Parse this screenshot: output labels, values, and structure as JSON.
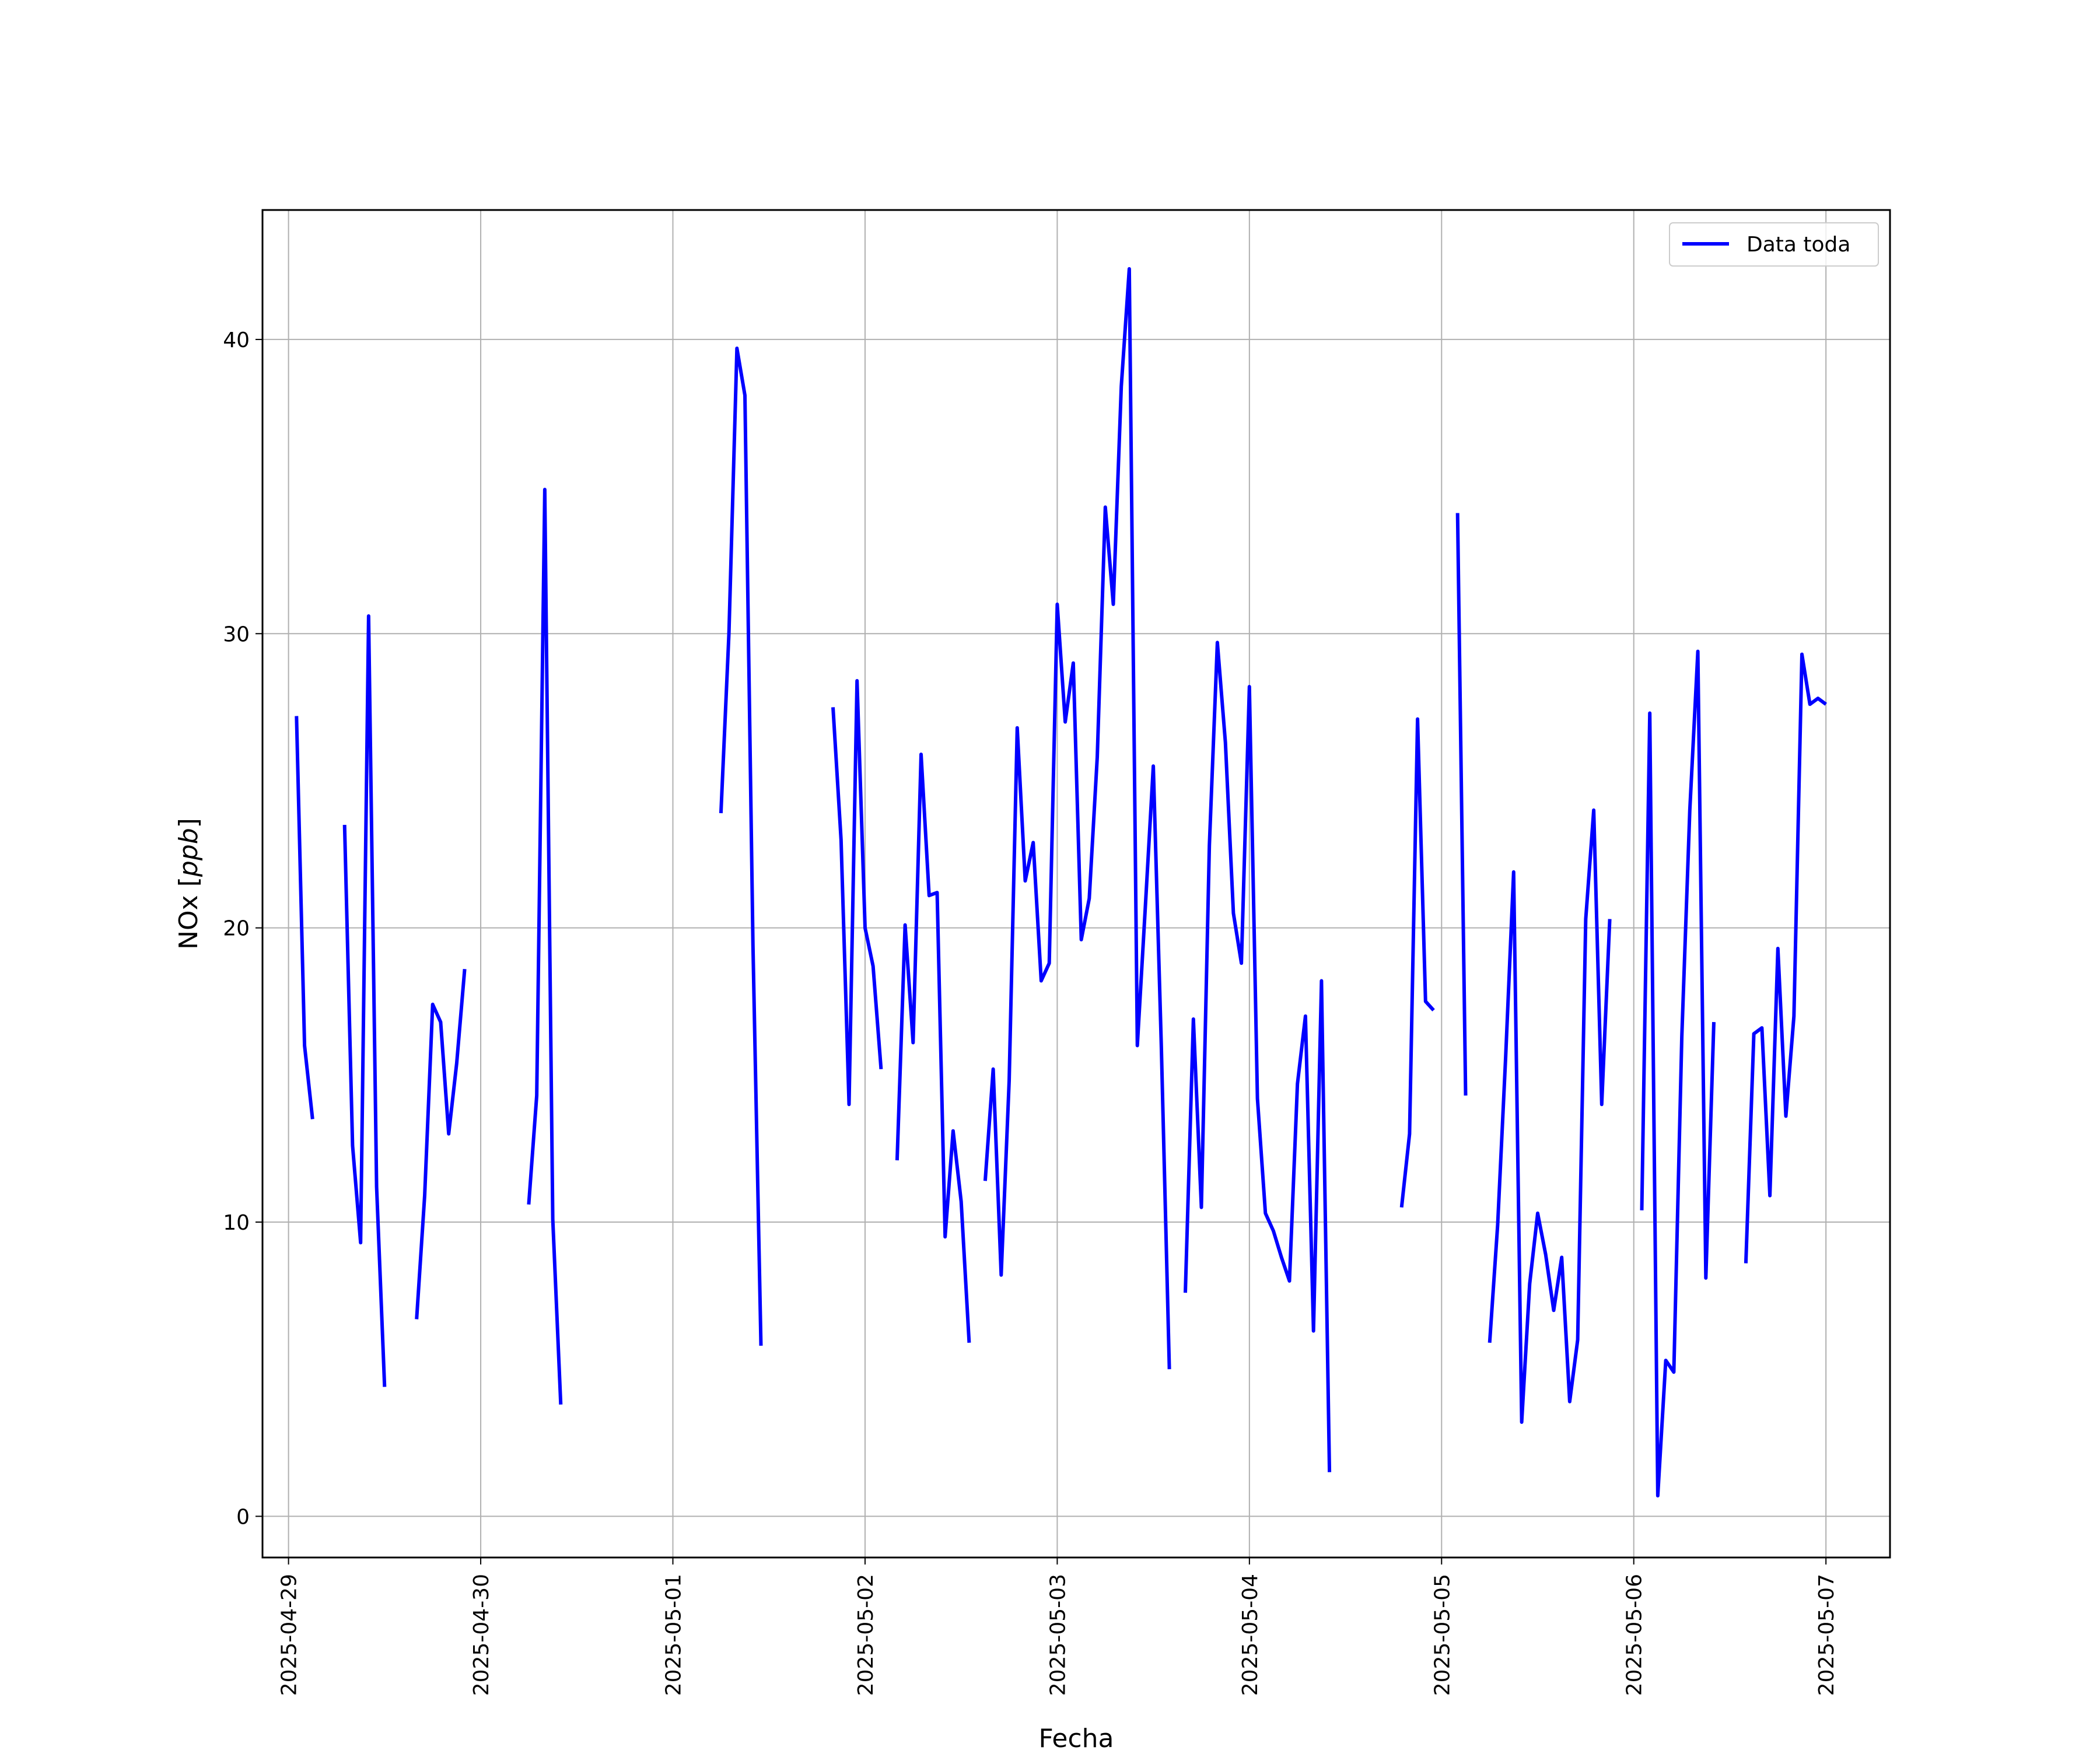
{
  "chart_data": {
    "type": "line",
    "title": "",
    "xlabel": "Fecha",
    "ylabel": "NOx [ppb]",
    "ylabel_main": "NOx ",
    "ylabel_unit": "ppb",
    "x_start": "2025-04-28T20:45",
    "x_end": "2025-05-07T08:00",
    "ylim": [
      -1.4,
      44.4
    ],
    "yticks": [
      0,
      10,
      20,
      30,
      40
    ],
    "xticks": [
      "2025-04-29",
      "2025-04-30",
      "2025-05-01",
      "2025-05-02",
      "2025-05-03",
      "2025-05-04",
      "2025-05-05",
      "2025-05-06",
      "2025-05-07"
    ],
    "grid": true,
    "legend_position": "upper right",
    "series": [
      {
        "name": "Data toda",
        "color": "#0000ff",
        "segments": [
          [
            [
              "2025-04-29T01:00",
              27.2
            ],
            [
              "2025-04-29T02:00",
              16.0
            ],
            [
              "2025-04-29T03:00",
              13.5
            ]
          ],
          [
            [
              "2025-04-29T07:00",
              23.5
            ],
            [
              "2025-04-29T08:00",
              12.6
            ],
            [
              "2025-04-29T09:00",
              9.3
            ],
            [
              "2025-04-29T10:00",
              30.6
            ],
            [
              "2025-04-29T11:00",
              11.2
            ],
            [
              "2025-04-29T12:00",
              4.4
            ]
          ],
          [
            [
              "2025-04-29T16:00",
              6.7
            ],
            [
              "2025-04-29T17:00",
              10.9
            ],
            [
              "2025-04-29T18:00",
              17.4
            ],
            [
              "2025-04-29T19:00",
              16.8
            ],
            [
              "2025-04-29T20:00",
              13.0
            ],
            [
              "2025-04-29T21:00",
              15.4
            ],
            [
              "2025-04-29T22:00",
              18.6
            ]
          ],
          [
            [
              "2025-04-30T06:00",
              10.6
            ],
            [
              "2025-04-30T07:00",
              14.3
            ],
            [
              "2025-04-30T08:00",
              34.9
            ],
            [
              "2025-04-30T09:00",
              10.1
            ],
            [
              "2025-04-30T10:00",
              3.8
            ]
          ],
          [
            [
              "2025-05-01T06:00",
              23.9
            ],
            [
              "2025-05-01T07:00",
              30.0
            ],
            [
              "2025-05-01T08:00",
              39.7
            ],
            [
              "2025-05-01T09:00",
              38.1
            ],
            [
              "2025-05-01T10:00",
              19.4
            ],
            [
              "2025-05-01T11:00",
              5.8
            ]
          ],
          [
            [
              "2025-05-01T20:00",
              27.5
            ],
            [
              "2025-05-01T21:00",
              23.0
            ],
            [
              "2025-05-01T22:00",
              14.0
            ],
            [
              "2025-05-01T23:00",
              28.4
            ],
            [
              "2025-05-02T00:00",
              20.0
            ],
            [
              "2025-05-02T01:00",
              18.7
            ],
            [
              "2025-05-02T02:00",
              15.2
            ]
          ],
          [
            [
              "2025-05-02T04:00",
              12.1
            ],
            [
              "2025-05-02T05:00",
              20.1
            ],
            [
              "2025-05-02T06:00",
              16.1
            ],
            [
              "2025-05-02T07:00",
              25.9
            ],
            [
              "2025-05-02T08:00",
              21.1
            ],
            [
              "2025-05-02T09:00",
              21.2
            ],
            [
              "2025-05-02T10:00",
              9.5
            ],
            [
              "2025-05-02T11:00",
              13.1
            ],
            [
              "2025-05-02T12:00",
              10.7
            ],
            [
              "2025-05-02T13:00",
              5.9
            ]
          ],
          [
            [
              "2025-05-02T15:00",
              11.4
            ],
            [
              "2025-05-02T16:00",
              15.2
            ],
            [
              "2025-05-02T17:00",
              8.2
            ],
            [
              "2025-05-02T18:00",
              14.8
            ],
            [
              "2025-05-02T19:00",
              26.8
            ],
            [
              "2025-05-02T20:00",
              21.6
            ],
            [
              "2025-05-02T21:00",
              22.9
            ],
            [
              "2025-05-02T22:00",
              18.2
            ],
            [
              "2025-05-02T23:00",
              18.8
            ],
            [
              "2025-05-03T00:00",
              31.0
            ],
            [
              "2025-05-03T01:00",
              27.0
            ],
            [
              "2025-05-03T02:00",
              29.0
            ],
            [
              "2025-05-03T03:00",
              19.6
            ],
            [
              "2025-05-03T04:00",
              21.0
            ],
            [
              "2025-05-03T05:00",
              25.8
            ],
            [
              "2025-05-03T06:00",
              34.3
            ],
            [
              "2025-05-03T07:00",
              31.0
            ],
            [
              "2025-05-03T08:00",
              38.4
            ],
            [
              "2025-05-03T09:00",
              42.4
            ],
            [
              "2025-05-03T10:00",
              16.0
            ],
            [
              "2025-05-03T11:00",
              20.7
            ],
            [
              "2025-05-03T12:00",
              25.5
            ],
            [
              "2025-05-03T13:00",
              16.0
            ],
            [
              "2025-05-03T14:00",
              5.0
            ]
          ],
          [
            [
              "2025-05-03T16:00",
              7.6
            ],
            [
              "2025-05-03T17:00",
              16.9
            ],
            [
              "2025-05-03T18:00",
              10.5
            ],
            [
              "2025-05-03T19:00",
              22.8
            ],
            [
              "2025-05-03T20:00",
              29.7
            ],
            [
              "2025-05-03T21:00",
              26.3
            ],
            [
              "2025-05-03T22:00",
              20.5
            ],
            [
              "2025-05-03T23:00",
              18.8
            ],
            [
              "2025-05-04T00:00",
              28.2
            ],
            [
              "2025-05-04T01:00",
              14.2
            ],
            [
              "2025-05-04T02:00",
              10.3
            ],
            [
              "2025-05-04T03:00",
              9.7
            ],
            [
              "2025-05-04T04:00",
              8.8
            ],
            [
              "2025-05-04T05:00",
              8.0
            ],
            [
              "2025-05-04T06:00",
              14.7
            ],
            [
              "2025-05-04T07:00",
              17.0
            ],
            [
              "2025-05-04T08:00",
              6.3
            ],
            [
              "2025-05-04T09:00",
              18.2
            ],
            [
              "2025-05-04T10:00",
              1.5
            ]
          ],
          [
            [
              "2025-05-04T19:00",
              10.5
            ],
            [
              "2025-05-04T20:00",
              13.0
            ],
            [
              "2025-05-04T21:00",
              27.1
            ],
            [
              "2025-05-04T22:00",
              17.5
            ],
            [
              "2025-05-04T23:00",
              17.2
            ]
          ],
          [
            [
              "2025-05-05T02:00",
              34.1
            ],
            [
              "2025-05-05T03:00",
              14.3
            ]
          ],
          [
            [
              "2025-05-05T06:00",
              5.9
            ],
            [
              "2025-05-05T07:00",
              9.9
            ],
            [
              "2025-05-05T08:00",
              15.6
            ],
            [
              "2025-05-05T09:00",
              21.9
            ],
            [
              "2025-05-05T10:00",
              3.2
            ],
            [
              "2025-05-05T11:00",
              7.9
            ],
            [
              "2025-05-05T12:00",
              10.3
            ],
            [
              "2025-05-05T13:00",
              8.9
            ],
            [
              "2025-05-05T14:00",
              7.0
            ],
            [
              "2025-05-05T15:00",
              8.8
            ],
            [
              "2025-05-05T16:00",
              3.9
            ],
            [
              "2025-05-05T17:00",
              6.0
            ],
            [
              "2025-05-05T18:00",
              20.3
            ],
            [
              "2025-05-05T19:00",
              24.0
            ],
            [
              "2025-05-05T20:00",
              14.0
            ],
            [
              "2025-05-05T21:00",
              20.3
            ]
          ],
          [
            [
              "2025-05-06T01:00",
              10.4
            ],
            [
              "2025-05-06T02:00",
              27.3
            ],
            [
              "2025-05-06T03:00",
              0.7
            ],
            [
              "2025-05-06T04:00",
              5.3
            ],
            [
              "2025-05-06T05:00",
              4.9
            ],
            [
              "2025-05-06T06:00",
              16.3
            ],
            [
              "2025-05-06T07:00",
              24.0
            ],
            [
              "2025-05-06T08:00",
              29.4
            ],
            [
              "2025-05-06T09:00",
              8.1
            ],
            [
              "2025-05-06T10:00",
              16.8
            ]
          ],
          [
            [
              "2025-05-06T14:00",
              8.6
            ],
            [
              "2025-05-06T15:00",
              16.4
            ],
            [
              "2025-05-06T16:00",
              16.6
            ],
            [
              "2025-05-06T17:00",
              10.9
            ],
            [
              "2025-05-06T18:00",
              19.3
            ],
            [
              "2025-05-06T19:00",
              13.6
            ],
            [
              "2025-05-06T20:00",
              17.0
            ],
            [
              "2025-05-06T21:00",
              29.3
            ],
            [
              "2025-05-06T22:00",
              27.6
            ],
            [
              "2025-05-06T23:00",
              27.8
            ],
            [
              "2025-05-07T00:00",
              27.6
            ]
          ]
        ]
      }
    ]
  }
}
